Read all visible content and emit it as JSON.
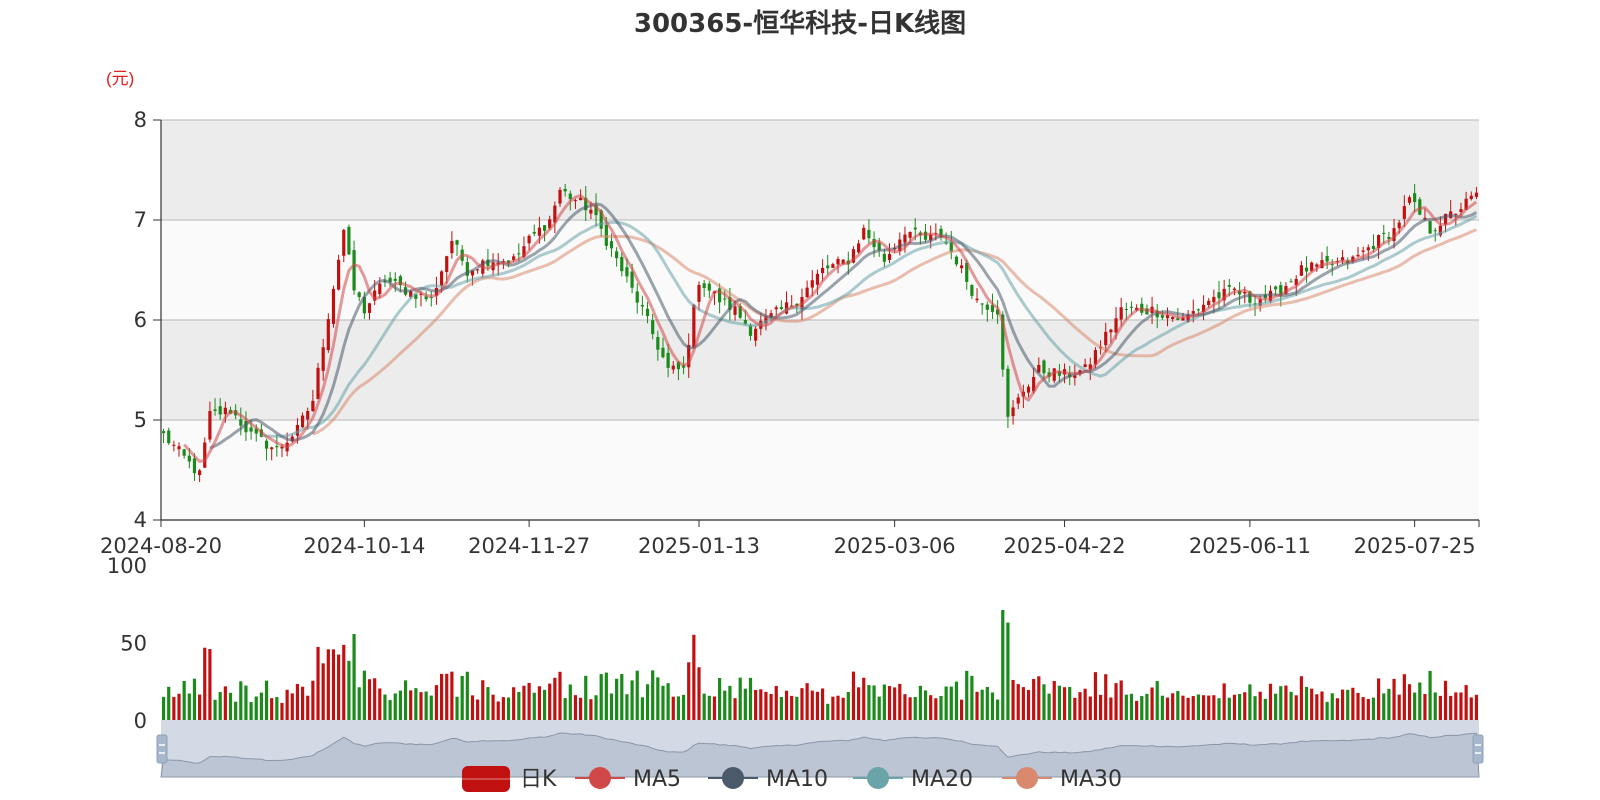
{
  "chart_data": {
    "type": "candlestick",
    "title": "300365-恒华科技-日K线图",
    "unit_label": "(元)",
    "price_axis": {
      "min": 4,
      "max": 8,
      "ticks": [
        4,
        5,
        6,
        7,
        8
      ]
    },
    "volume_axis": {
      "min": 0,
      "max": 100,
      "ticks": [
        0,
        50,
        100
      ]
    },
    "date_range": [
      "2024-08-20",
      "2025-08-12"
    ],
    "date_ticks": [
      "2024-08-20",
      "2024-10-14",
      "2024-11-27",
      "2025-01-13",
      "2025-03-06",
      "2025-04-22",
      "2025-06-11",
      "2025-07-25"
    ],
    "up_color": "#c01010",
    "down_color": "#1a8a1a",
    "ma_colors": {
      "MA5": "#d04848",
      "MA10": "#4a5a6a",
      "MA20": "#6aa3a8",
      "MA30": "#d98a6e"
    },
    "legend": [
      {
        "name": "日K",
        "color": "#c01010"
      },
      {
        "name": "MA5",
        "color": "#d04848"
      },
      {
        "name": "MA10",
        "color": "#4a5a6a"
      },
      {
        "name": "MA20",
        "color": "#6aa3a8"
      },
      {
        "name": "MA30",
        "color": "#d98a6e"
      }
    ],
    "close_anchors": [
      [
        "2024-08-20",
        4.85
      ],
      [
        "2024-08-29",
        4.45
      ],
      [
        "2024-09-02",
        5.05
      ],
      [
        "2024-09-06",
        5.1
      ],
      [
        "2024-09-12",
        4.85
      ],
      [
        "2024-09-19",
        4.7
      ],
      [
        "2024-09-25",
        4.9
      ],
      [
        "2024-09-30",
        5.2
      ],
      [
        "2024-10-08",
        6.9
      ],
      [
        "2024-10-10",
        6.3
      ],
      [
        "2024-10-14",
        6.1
      ],
      [
        "2024-10-18",
        6.4
      ],
      [
        "2024-10-24",
        6.3
      ],
      [
        "2024-10-31",
        6.2
      ],
      [
        "2024-11-06",
        6.8
      ],
      [
        "2024-11-11",
        6.5
      ],
      [
        "2024-11-15",
        6.6
      ],
      [
        "2024-11-22",
        6.6
      ],
      [
        "2024-11-27",
        6.8
      ],
      [
        "2024-12-03",
        7.0
      ],
      [
        "2024-12-05",
        7.3
      ],
      [
        "2024-12-10",
        7.2
      ],
      [
        "2024-12-13",
        7.1
      ],
      [
        "2024-12-18",
        6.8
      ],
      [
        "2024-12-23",
        6.5
      ],
      [
        "2024-12-27",
        6.1
      ],
      [
        "2025-01-03",
        5.5
      ],
      [
        "2025-01-08",
        5.5
      ],
      [
        "2025-01-13",
        6.4
      ],
      [
        "2025-01-17",
        6.2
      ],
      [
        "2025-01-22",
        6.1
      ],
      [
        "2025-01-27",
        5.9
      ],
      [
        "2025-02-07",
        6.2
      ],
      [
        "2025-02-14",
        6.5
      ],
      [
        "2025-02-21",
        6.6
      ],
      [
        "2025-02-26",
        6.9
      ],
      [
        "2025-03-04",
        6.6
      ],
      [
        "2025-03-10",
        6.9
      ],
      [
        "2025-03-14",
        6.8
      ],
      [
        "2025-03-19",
        6.85
      ],
      [
        "2025-03-24",
        6.6
      ],
      [
        "2025-03-28",
        6.2
      ],
      [
        "2025-04-03",
        6.1
      ],
      [
        "2025-04-07",
        5.0
      ],
      [
        "2025-04-10",
        5.3
      ],
      [
        "2025-04-15",
        5.5
      ],
      [
        "2025-04-22",
        5.45
      ],
      [
        "2025-04-28",
        5.5
      ],
      [
        "2025-05-07",
        6.1
      ],
      [
        "2025-05-15",
        6.1
      ],
      [
        "2025-05-23",
        6.0
      ],
      [
        "2025-05-30",
        6.2
      ],
      [
        "2025-06-06",
        6.3
      ],
      [
        "2025-06-11",
        6.2
      ],
      [
        "2025-06-18",
        6.25
      ],
      [
        "2025-06-25",
        6.5
      ],
      [
        "2025-07-02",
        6.55
      ],
      [
        "2025-07-09",
        6.6
      ],
      [
        "2025-07-16",
        6.8
      ],
      [
        "2025-07-21",
        6.9
      ],
      [
        "2025-07-24",
        7.2
      ],
      [
        "2025-07-30",
        6.9
      ],
      [
        "2025-08-05",
        7.05
      ],
      [
        "2025-08-12",
        7.25
      ]
    ]
  }
}
